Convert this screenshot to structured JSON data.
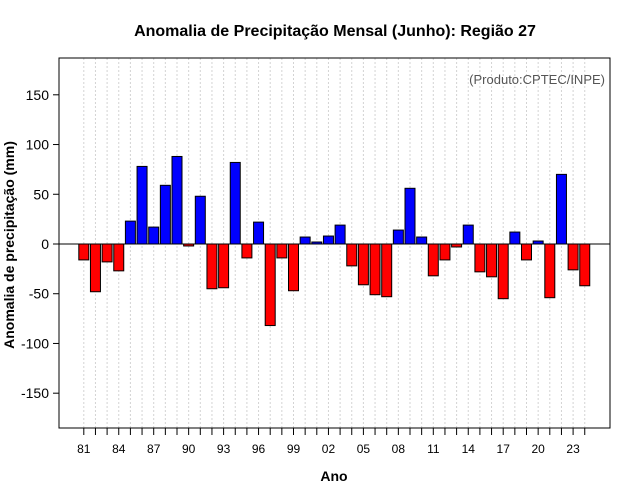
{
  "chart_data": {
    "type": "bar",
    "title": "Anomalia de Precipitação Mensal (Junho): Região 27",
    "xlabel": "Ano",
    "ylabel": "Anomalia de precipitação (mm)",
    "annotation": "(Produto:CPTEC/INPE)",
    "ylim": [
      -185,
      187
    ],
    "yticks": [
      -150,
      -100,
      -50,
      0,
      50,
      100,
      150
    ],
    "xticks": [
      "81",
      "84",
      "87",
      "90",
      "93",
      "96",
      "99",
      "02",
      "05",
      "08",
      "11",
      "14",
      "17",
      "20",
      "23"
    ],
    "categories": [
      "1981",
      "1982",
      "1983",
      "1984",
      "1985",
      "1986",
      "1987",
      "1988",
      "1989",
      "1990",
      "1991",
      "1992",
      "1993",
      "1994",
      "1995",
      "1996",
      "1997",
      "1998",
      "1999",
      "2000",
      "2001",
      "2002",
      "2003",
      "2004",
      "2005",
      "2006",
      "2007",
      "2008",
      "2009",
      "2010",
      "2011",
      "2012",
      "2013",
      "2014",
      "2015",
      "2016",
      "2017",
      "2018",
      "2019",
      "2020",
      "2021",
      "2022",
      "2023",
      "2024"
    ],
    "values": [
      -16,
      -48,
      -18,
      -27,
      23,
      78,
      17,
      59,
      88,
      -2,
      48,
      -45,
      -44,
      82,
      -14,
      22,
      -82,
      -14,
      -47,
      7,
      2,
      8,
      19,
      -22,
      -41,
      -51,
      -53,
      14,
      56,
      7,
      -32,
      -16,
      -3,
      19,
      -28,
      -33,
      -55,
      12,
      -16,
      3,
      -54,
      70,
      -26,
      -42
    ],
    "colors": {
      "positive": "#0000ff",
      "negative": "#ff0000",
      "grid": "#d3d3d3"
    }
  }
}
